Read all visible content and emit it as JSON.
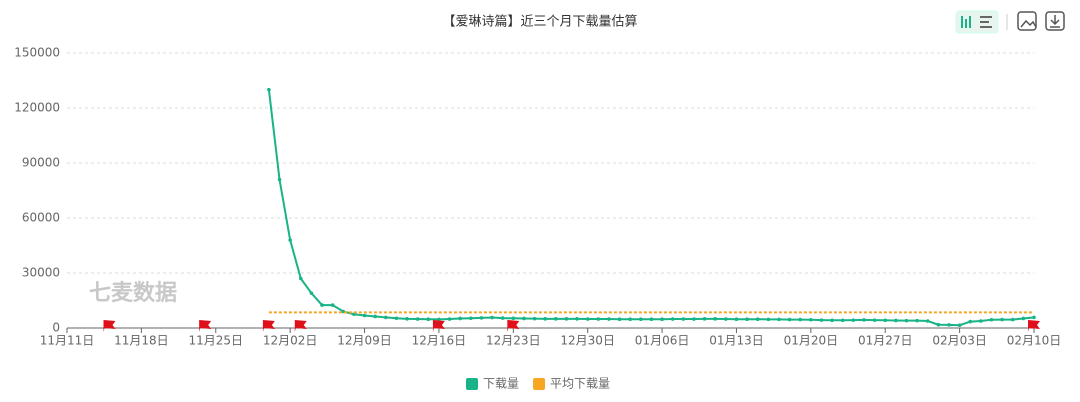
{
  "chart_data": {
    "type": "line",
    "title": "【爱琳诗篇】近三个月下载量估算",
    "watermark": "七麦数据",
    "xlim": [
      0,
      91
    ],
    "xticks": [
      {
        "value": 0,
        "label": "11月11日"
      },
      {
        "value": 7,
        "label": "11月18日"
      },
      {
        "value": 14,
        "label": "11月25日"
      },
      {
        "value": 21,
        "label": "12月02日"
      },
      {
        "value": 28,
        "label": "12月09日"
      },
      {
        "value": 35,
        "label": "12月16日"
      },
      {
        "value": 42,
        "label": "12月23日"
      },
      {
        "value": 49,
        "label": "12月30日"
      },
      {
        "value": 56,
        "label": "01月06日"
      },
      {
        "value": 63,
        "label": "01月13日"
      },
      {
        "value": 70,
        "label": "01月20日"
      },
      {
        "value": 77,
        "label": "01月27日"
      },
      {
        "value": 84,
        "label": "02月03日"
      },
      {
        "value": 91,
        "label": "02月10日"
      }
    ],
    "ylim": [
      0,
      150000
    ],
    "yticks": [
      0,
      30000,
      60000,
      90000,
      120000,
      150000
    ],
    "grid": true,
    "flags": [
      4,
      13,
      19,
      22,
      35,
      42,
      91
    ],
    "series": [
      {
        "name": "下载量",
        "color": "#18b386",
        "x": [
          19,
          20,
          21,
          22,
          23,
          24,
          25,
          26,
          27,
          28,
          29,
          30,
          31,
          32,
          33,
          34,
          35,
          36,
          37,
          38,
          39,
          40,
          41,
          42,
          43,
          44,
          45,
          46,
          47,
          48,
          49,
          50,
          51,
          52,
          53,
          54,
          55,
          56,
          57,
          58,
          59,
          60,
          61,
          62,
          63,
          64,
          65,
          66,
          67,
          68,
          69,
          70,
          71,
          72,
          73,
          74,
          75,
          76,
          77,
          78,
          79,
          80,
          81,
          82,
          83,
          84,
          85,
          86,
          87,
          88,
          89,
          90,
          91
        ],
        "values": [
          130000,
          81000,
          48000,
          27000,
          19000,
          12500,
          12500,
          9000,
          7500,
          6800,
          6300,
          5800,
          5300,
          5000,
          4900,
          4800,
          4700,
          4900,
          5200,
          5300,
          5500,
          5700,
          5400,
          5300,
          5200,
          5100,
          5000,
          5000,
          5000,
          5000,
          4900,
          4900,
          4900,
          4800,
          4800,
          4800,
          4800,
          4800,
          4900,
          4900,
          4900,
          5000,
          5000,
          4900,
          4800,
          4800,
          4800,
          4700,
          4700,
          4600,
          4600,
          4500,
          4300,
          4200,
          4200,
          4300,
          4400,
          4300,
          4200,
          4100,
          4000,
          4000,
          3800,
          1800,
          1700,
          1500,
          3500,
          3800,
          4500,
          4600,
          4600,
          5200,
          5800
        ]
      },
      {
        "name": "平均下载量",
        "color": "#f5a623",
        "dashed": true,
        "x": [
          19,
          91
        ],
        "values": [
          8500,
          8500
        ]
      }
    ]
  }
}
